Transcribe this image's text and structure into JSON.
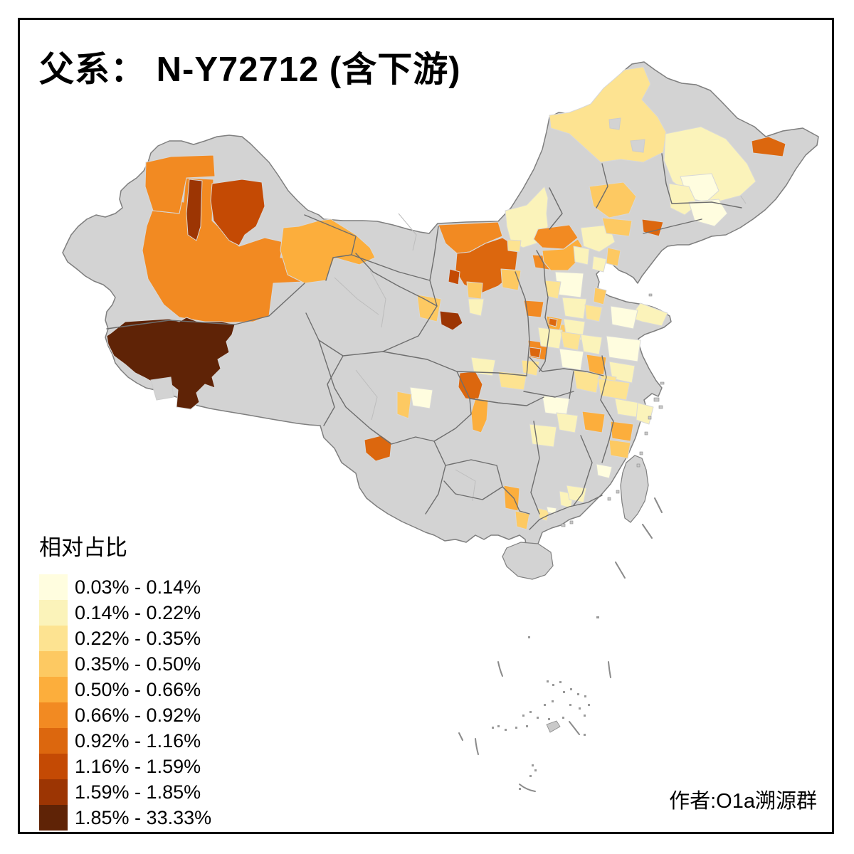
{
  "title": "父系： N-Y72712 (含下游)",
  "attribution": "作者:O1a溯源群",
  "legend": {
    "title": "相对占比",
    "classes": [
      {
        "label": "0.03% - 0.14%",
        "color": "#FFFDDF"
      },
      {
        "label": "0.14% - 0.22%",
        "color": "#FBF3BA"
      },
      {
        "label": "0.22% - 0.35%",
        "color": "#FDE391"
      },
      {
        "label": "0.35% - 0.50%",
        "color": "#FDC962"
      },
      {
        "label": "0.50% - 0.66%",
        "color": "#FCAE3C"
      },
      {
        "label": "0.66% - 0.92%",
        "color": "#F28A22"
      },
      {
        "label": "0.92% - 1.16%",
        "color": "#DC670E"
      },
      {
        "label": "1.16% - 1.59%",
        "color": "#C44A04"
      },
      {
        "label": "1.59% - 1.85%",
        "color": "#9C3503"
      },
      {
        "label": "1.85% - 33.33%",
        "color": "#5F2306"
      }
    ]
  },
  "map": {
    "background": "#FFFFFF",
    "no_data_fill": "#D3D3D3",
    "outline_color": "#7f7f7f",
    "frame_color": "#000000",
    "regions": [
      {
        "id": "ili",
        "class": 6
      },
      {
        "id": "south-xinjiang",
        "class": 6
      },
      {
        "id": "karamay-strip",
        "class": 9
      },
      {
        "id": "urumqi-changji",
        "class": 8
      },
      {
        "id": "hami",
        "class": 5
      },
      {
        "id": "west-tibet",
        "class": 10
      },
      {
        "id": "hexi-sliver",
        "class": 3
      },
      {
        "id": "wuwei",
        "class": 4
      },
      {
        "id": "lanzhou",
        "class": 9
      },
      {
        "id": "bayannur",
        "class": 6
      },
      {
        "id": "ordos",
        "class": 7
      },
      {
        "id": "wuhai",
        "class": 8
      },
      {
        "id": "yinchuan",
        "class": 4
      },
      {
        "id": "ningxia-pale",
        "class": 2
      },
      {
        "id": "yulin",
        "class": 4
      },
      {
        "id": "xilingol",
        "class": 2
      },
      {
        "id": "xilingol-south",
        "class": 3
      },
      {
        "id": "datong",
        "class": 6
      },
      {
        "id": "ulanqab",
        "class": 6
      },
      {
        "id": "zhangjiakou",
        "class": 5
      },
      {
        "id": "beijing-pale",
        "class": 2
      },
      {
        "id": "chengde",
        "class": 2
      },
      {
        "id": "qinhuangdao",
        "class": 4
      },
      {
        "id": "tangshan",
        "class": 2
      },
      {
        "id": "hebei-pale-1",
        "class": 1
      },
      {
        "id": "hebei-pale-2",
        "class": 2
      },
      {
        "id": "shijiazhuang",
        "class": 3
      },
      {
        "id": "anyang",
        "class": 4
      },
      {
        "id": "dongying",
        "class": 4
      },
      {
        "id": "shandong-east-pale",
        "class": 2
      },
      {
        "id": "shandong-central-pale",
        "class": 1
      },
      {
        "id": "jinan",
        "class": 3
      },
      {
        "id": "heze",
        "class": 2
      },
      {
        "id": "hulunbuir",
        "class": 3
      },
      {
        "id": "heihe",
        "class": 2
      },
      {
        "id": "nenjiang-cream",
        "class": 1
      },
      {
        "id": "suihua",
        "class": 2
      },
      {
        "id": "harbin-pale",
        "class": 1
      },
      {
        "id": "jiamusi",
        "class": 7
      },
      {
        "id": "songyuan",
        "class": 4
      },
      {
        "id": "baicheng",
        "class": 4
      },
      {
        "id": "tieling",
        "class": 7
      },
      {
        "id": "taiyuan",
        "class": 6
      },
      {
        "id": "changzhi",
        "class": 5
      },
      {
        "id": "changzhi-core",
        "class": 7
      },
      {
        "id": "linfen",
        "class": 6
      },
      {
        "id": "linfen-core",
        "class": 7
      },
      {
        "id": "yuncheng",
        "class": 3
      },
      {
        "id": "henan-pale-1",
        "class": 2
      },
      {
        "id": "henan-pale-2",
        "class": 1
      },
      {
        "id": "zhengzhou",
        "class": 3
      },
      {
        "id": "kaifeng",
        "class": 2
      },
      {
        "id": "xuzhou",
        "class": 5
      },
      {
        "id": "jiangsu-pale",
        "class": 1
      },
      {
        "id": "yangzhou",
        "class": 2
      },
      {
        "id": "hefei",
        "class": 3
      },
      {
        "id": "nanjing",
        "class": 3
      },
      {
        "id": "wuhan-pale",
        "class": 1
      },
      {
        "id": "hubei-nw",
        "class": 3
      },
      {
        "id": "hanzhong-pale",
        "class": 2
      },
      {
        "id": "dazhou",
        "class": 7
      },
      {
        "id": "chongqing",
        "class": 5
      },
      {
        "id": "chengdu-pale",
        "class": 1
      },
      {
        "id": "longnan",
        "class": 4
      },
      {
        "id": "lijiang",
        "class": 7
      },
      {
        "id": "hunan-pale",
        "class": 2
      },
      {
        "id": "nanchang-pale",
        "class": 2
      },
      {
        "id": "shangrao",
        "class": 5
      },
      {
        "id": "lishui",
        "class": 5
      },
      {
        "id": "nanping",
        "class": 4
      },
      {
        "id": "jinhua-pale",
        "class": 3
      },
      {
        "id": "hangzhou-pale",
        "class": 2
      },
      {
        "id": "ningbo-pale",
        "class": 2
      },
      {
        "id": "fuzhou-pale",
        "class": 1
      },
      {
        "id": "ganzhou-pale",
        "class": 2
      },
      {
        "id": "guangdong-ne-pale",
        "class": 2
      },
      {
        "id": "wuzhou",
        "class": 5
      },
      {
        "id": "yunfu",
        "class": 4
      },
      {
        "id": "jiangmen",
        "class": 3
      },
      {
        "id": "guangzhou-cream",
        "class": 1
      }
    ]
  }
}
